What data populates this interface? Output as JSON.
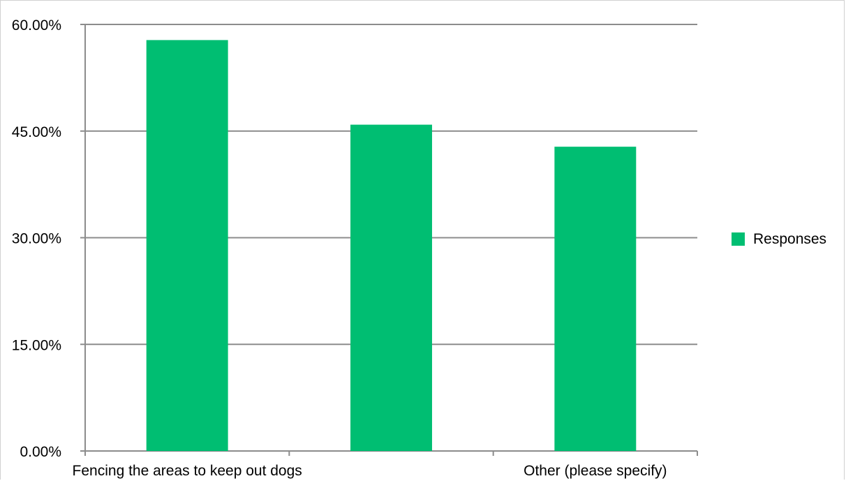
{
  "chart_data": {
    "type": "bar",
    "categories": [
      "Fencing the areas to keep out dogs",
      "",
      "Other (please specify)"
    ],
    "series": [
      {
        "name": "Responses",
        "values": [
          57.8,
          45.9,
          42.8
        ],
        "color": "#00be72"
      }
    ],
    "y_ticks": [
      "0.00%",
      "15.00%",
      "30.00%",
      "45.00%",
      "60.00%"
    ],
    "ylim": [
      0,
      60
    ],
    "grid": true,
    "legend": {
      "position": "right",
      "label": "Responses"
    },
    "colors": {
      "bar": "#00be72",
      "grid": "#8c8c8c",
      "axis": "#8c8c8c"
    }
  }
}
